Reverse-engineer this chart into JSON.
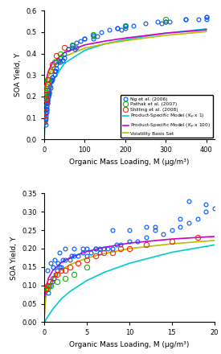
{
  "top_panel": {
    "xlim": [
      0,
      420
    ],
    "ylim": [
      0,
      0.6
    ],
    "xlabel": "Organic Mass Loading, M (μg/m³)",
    "ylabel": "SOA Yield, Y",
    "yticks": [
      0,
      0.1,
      0.2,
      0.3,
      0.4,
      0.5,
      0.6
    ],
    "xticks": [
      0,
      100,
      200,
      300,
      400
    ],
    "ng_x": [
      2,
      3,
      4,
      5,
      6,
      7,
      8,
      9,
      10,
      12,
      14,
      16,
      18,
      20,
      25,
      30,
      35,
      40,
      50,
      60,
      70,
      80,
      90,
      100,
      120,
      140,
      160,
      180,
      200,
      220,
      250,
      280,
      310,
      350,
      400,
      3,
      5,
      8,
      12,
      20,
      35,
      60,
      100,
      180,
      300,
      400,
      2,
      4,
      6,
      10,
      15,
      25,
      40,
      70,
      120,
      200,
      350,
      5,
      8,
      12,
      20,
      30,
      50,
      80,
      130,
      200,
      300,
      400,
      4,
      7,
      11,
      18,
      28,
      45,
      75,
      120,
      190,
      290,
      380
    ],
    "ng_y": [
      0.08,
      0.1,
      0.12,
      0.14,
      0.16,
      0.17,
      0.19,
      0.2,
      0.21,
      0.23,
      0.25,
      0.27,
      0.28,
      0.29,
      0.32,
      0.35,
      0.37,
      0.38,
      0.4,
      0.42,
      0.44,
      0.45,
      0.46,
      0.47,
      0.49,
      0.5,
      0.51,
      0.52,
      0.53,
      0.53,
      0.54,
      0.55,
      0.55,
      0.56,
      0.57,
      0.07,
      0.13,
      0.18,
      0.22,
      0.29,
      0.36,
      0.42,
      0.47,
      0.52,
      0.55,
      0.56,
      0.09,
      0.11,
      0.15,
      0.2,
      0.24,
      0.3,
      0.36,
      0.43,
      0.48,
      0.53,
      0.56,
      0.14,
      0.18,
      0.22,
      0.28,
      0.33,
      0.38,
      0.43,
      0.48,
      0.52,
      0.55,
      0.57,
      0.12,
      0.17,
      0.21,
      0.27,
      0.32,
      0.37,
      0.42,
      0.47,
      0.51,
      0.54,
      0.56
    ],
    "pathak_x": [
      2,
      3,
      5,
      8,
      15,
      25,
      40,
      70,
      120,
      200,
      300
    ],
    "pathak_y": [
      0.2,
      0.22,
      0.25,
      0.28,
      0.32,
      0.36,
      0.4,
      0.44,
      0.49,
      0.53,
      0.56
    ],
    "shilling_x": [
      1,
      2,
      3,
      4,
      5,
      6,
      8,
      10,
      15,
      20,
      30,
      50
    ],
    "shilling_y": [
      0.09,
      0.13,
      0.17,
      0.19,
      0.21,
      0.23,
      0.26,
      0.28,
      0.32,
      0.35,
      0.39,
      0.43
    ],
    "model_kp1_x": [
      0.01,
      0.05,
      0.1,
      0.5,
      1,
      2,
      5,
      10,
      20,
      50,
      100,
      150,
      200,
      300,
      400
    ],
    "model_kp1_y": [
      0.0005,
      0.002,
      0.005,
      0.022,
      0.042,
      0.075,
      0.145,
      0.205,
      0.27,
      0.355,
      0.415,
      0.445,
      0.465,
      0.495,
      0.515
    ],
    "model_kp100_x": [
      0.01,
      0.05,
      0.1,
      0.5,
      1,
      2,
      5,
      10,
      20,
      50,
      100,
      150,
      200,
      300,
      400
    ],
    "model_kp100_y": [
      0.008,
      0.03,
      0.055,
      0.14,
      0.18,
      0.22,
      0.275,
      0.315,
      0.355,
      0.405,
      0.44,
      0.458,
      0.472,
      0.495,
      0.51
    ],
    "vbs_x": [
      0.01,
      0.05,
      0.1,
      0.5,
      1,
      2,
      5,
      10,
      20,
      50,
      100,
      150,
      200,
      300,
      400
    ],
    "vbs_y": [
      0.005,
      0.02,
      0.04,
      0.11,
      0.15,
      0.19,
      0.248,
      0.29,
      0.332,
      0.386,
      0.425,
      0.445,
      0.46,
      0.485,
      0.502
    ]
  },
  "bottom_panel": {
    "xlim": [
      0,
      20
    ],
    "ylim": [
      0,
      0.35
    ],
    "xlabel": "Organic Mass Loading, M (μg/m³)",
    "ylabel": "SOA Yield, Y",
    "yticks": [
      0,
      0.05,
      0.1,
      0.15,
      0.2,
      0.25,
      0.3,
      0.35
    ],
    "xticks": [
      0,
      5,
      10,
      15,
      20
    ],
    "ng_x": [
      0.3,
      0.5,
      0.7,
      0.9,
      1.1,
      1.3,
      1.5,
      1.8,
      2.0,
      2.5,
      3.0,
      3.5,
      4.0,
      4.5,
      5.0,
      5.5,
      6.0,
      6.5,
      7.0,
      7.5,
      8.0,
      9.0,
      10.0,
      11,
      12,
      13,
      14,
      15,
      16,
      17,
      18,
      19,
      20,
      0.4,
      0.8,
      1.2,
      1.8,
      2.5,
      3.5,
      5.0,
      6.5,
      8.0,
      10.0,
      13.0,
      16.0,
      19.0,
      0.5,
      1.0,
      1.6,
      2.2,
      3.2,
      4.5,
      6.0,
      8.5,
      12.0,
      17.0
    ],
    "ng_y": [
      0.09,
      0.1,
      0.1,
      0.11,
      0.12,
      0.13,
      0.14,
      0.15,
      0.15,
      0.17,
      0.17,
      0.18,
      0.18,
      0.19,
      0.18,
      0.19,
      0.2,
      0.19,
      0.2,
      0.2,
      0.2,
      0.21,
      0.22,
      0.22,
      0.23,
      0.25,
      0.24,
      0.25,
      0.26,
      0.27,
      0.28,
      0.3,
      0.31,
      0.14,
      0.16,
      0.17,
      0.19,
      0.2,
      0.2,
      0.2,
      0.2,
      0.25,
      0.25,
      0.26,
      0.28,
      0.32,
      0.08,
      0.15,
      0.16,
      0.17,
      0.18,
      0.2,
      0.2,
      0.21,
      0.26,
      0.33
    ],
    "pathak_x": [
      0.4,
      0.8,
      1.5,
      2.5,
      3.5,
      5.0
    ],
    "pathak_y": [
      0.09,
      0.1,
      0.11,
      0.12,
      0.13,
      0.15
    ],
    "shilling_x": [
      0.2,
      0.4,
      0.7,
      1.0,
      1.5,
      2.0,
      2.5,
      3.0,
      4.0,
      5.0,
      6.0,
      7.0,
      8.0,
      9.0,
      10.0,
      12.0,
      15.0,
      18.0
    ],
    "shilling_y": [
      0.09,
      0.1,
      0.11,
      0.12,
      0.13,
      0.14,
      0.14,
      0.15,
      0.16,
      0.17,
      0.18,
      0.19,
      0.19,
      0.2,
      0.2,
      0.21,
      0.22,
      0.23
    ],
    "model_kp1_x": [
      0.01,
      0.05,
      0.1,
      0.2,
      0.5,
      1,
      2,
      3,
      5,
      7,
      10,
      15,
      20
    ],
    "model_kp1_y": [
      0.0003,
      0.001,
      0.003,
      0.007,
      0.018,
      0.035,
      0.063,
      0.083,
      0.113,
      0.135,
      0.16,
      0.19,
      0.21
    ],
    "model_kp100_x": [
      0.01,
      0.05,
      0.1,
      0.2,
      0.5,
      1,
      2,
      3,
      5,
      7,
      10,
      15,
      20
    ],
    "model_kp100_y": [
      0.012,
      0.04,
      0.065,
      0.09,
      0.12,
      0.14,
      0.162,
      0.175,
      0.192,
      0.203,
      0.215,
      0.226,
      0.233
    ],
    "vbs_x": [
      0.01,
      0.05,
      0.1,
      0.2,
      0.5,
      1,
      2,
      3,
      5,
      7,
      10,
      15,
      20
    ],
    "vbs_y": [
      0.008,
      0.028,
      0.048,
      0.068,
      0.096,
      0.118,
      0.142,
      0.156,
      0.174,
      0.186,
      0.2,
      0.213,
      0.222
    ]
  },
  "colors": {
    "ng": "#0055FF",
    "pathak": "#00BB00",
    "shilling": "#FF2200",
    "model_kp1": "#00CCCC",
    "model_kp100": "#CC00CC",
    "vbs": "#BBBB00"
  },
  "legend": {
    "ng_label": "Ng et al. (2006)",
    "pathak_label": "Pathak et al. (2007)",
    "shilling_label": "Shilling et al. (2008)",
    "model_kp1_label": "Product-Specific Model (K$_p$ x 1)",
    "model_kp100_label": "Product-Specific Model (K$_p$ x 100)",
    "vbs_label": "Volatility Basis Set"
  }
}
